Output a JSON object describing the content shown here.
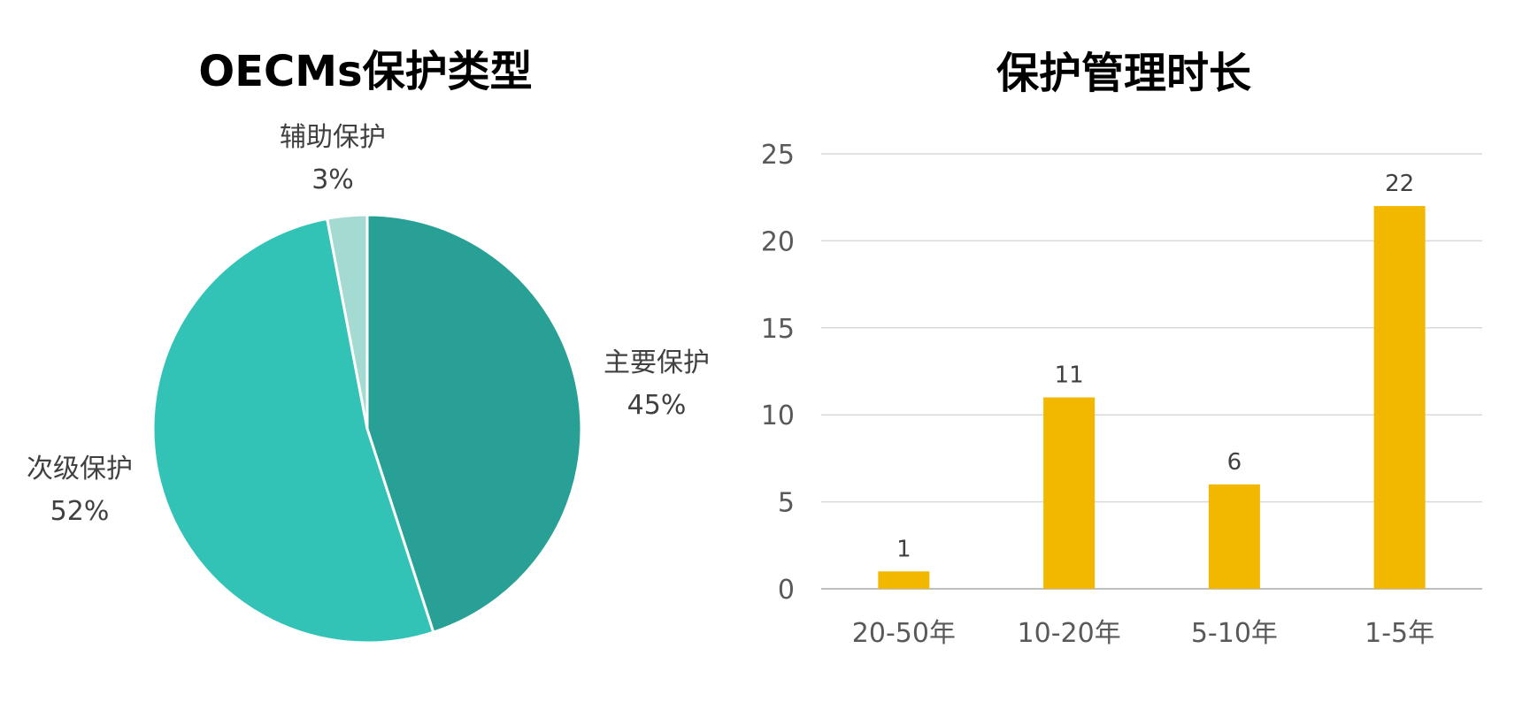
{
  "chart_data": [
    {
      "type": "pie",
      "title": "OECMs保护类型",
      "slices": [
        {
          "name": "主要保护",
          "value": 45,
          "label": "45%",
          "color": "#28a095"
        },
        {
          "name": "次级保护",
          "value": 52,
          "label": "52%",
          "color": "#33c3b6"
        },
        {
          "name": "辅助保护",
          "value": 3,
          "label": "3%",
          "color": "#a5dad3"
        }
      ]
    },
    {
      "type": "bar",
      "title": "保护管理时长",
      "categories": [
        "20-50年",
        "10-20年",
        "5-10年",
        "1-5年"
      ],
      "values": [
        1,
        11,
        6,
        22
      ],
      "value_labels": [
        "1",
        "11",
        "6",
        "22"
      ],
      "ylim": [
        0,
        25
      ],
      "yticks": [
        "0",
        "5",
        "10",
        "15",
        "20",
        "25"
      ],
      "grid": true,
      "bar_color": "#f2b800",
      "xlabel": "",
      "ylabel": ""
    }
  ]
}
